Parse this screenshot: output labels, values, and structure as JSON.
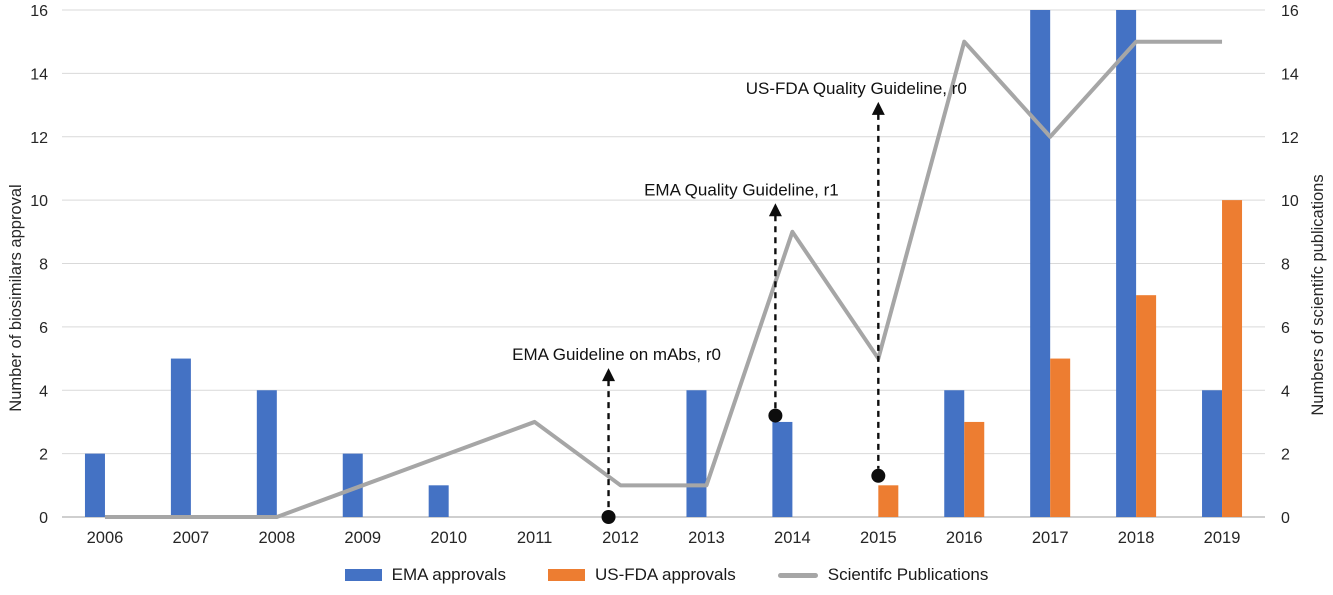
{
  "chart_data": {
    "type": "bar",
    "subtype": "bar+line combo",
    "categories": [
      "2006",
      "2007",
      "2008",
      "2009",
      "2010",
      "2011",
      "2012",
      "2013",
      "2014",
      "2015",
      "2016",
      "2017",
      "2018",
      "2019"
    ],
    "series": [
      {
        "name": "EMA approvals",
        "type": "bar",
        "axis": "left",
        "color": "#4472C4",
        "values": [
          2,
          5,
          4,
          2,
          1,
          0,
          0,
          4,
          3,
          0,
          4,
          16,
          16,
          4
        ]
      },
      {
        "name": "US-FDA approvals",
        "type": "bar",
        "axis": "left",
        "color": "#ED7D31",
        "values": [
          0,
          0,
          0,
          0,
          0,
          0,
          0,
          0,
          0,
          1,
          3,
          5,
          7,
          10
        ]
      },
      {
        "name": "Scientifc Publications",
        "type": "line",
        "axis": "right",
        "color": "#A6A6A6",
        "values": [
          0,
          0,
          0,
          1,
          2,
          3,
          1,
          1,
          9,
          5,
          15,
          12,
          15,
          15
        ]
      }
    ],
    "left_axis": {
      "title": "Number of biosimilars approval",
      "min": 0,
      "max": 16,
      "step": 2,
      "ticks": [
        0,
        2,
        4,
        6,
        8,
        10,
        12,
        14,
        16
      ]
    },
    "right_axis": {
      "title": "Numbers of scientifc publications",
      "min": 0,
      "max": 16,
      "step": 2,
      "ticks": [
        0,
        2,
        4,
        6,
        8,
        10,
        12,
        14,
        16
      ]
    },
    "grid": true,
    "legend_position": "bottom",
    "annotations": [
      {
        "category": "2012",
        "label": "EMA Guideline on mAbs, r0",
        "dot_value": 0,
        "tip_value": 4.7,
        "dx_line": -12,
        "dx_text": 8
      },
      {
        "category": "2014",
        "label": "EMA Quality Guideline, r1",
        "dot_value": 3.2,
        "tip_value": 9.9,
        "dx_line": -17,
        "dx_text": -34
      },
      {
        "category": "2015",
        "label": "US-FDA Quality Guideline, r0",
        "dot_value": 1.3,
        "tip_value": 13.1,
        "dx_line": 0,
        "dx_text": -22
      }
    ],
    "legend": [
      {
        "label": "EMA approvals",
        "swatch": "rect",
        "color": "#4472C4"
      },
      {
        "label": "US-FDA approvals",
        "swatch": "rect",
        "color": "#ED7D31"
      },
      {
        "label": "Scientifc Publications",
        "swatch": "line",
        "color": "#A6A6A6"
      }
    ],
    "colors": {
      "grid": "#D9D9D9",
      "axis_line": "#BFBFBF",
      "tick_text": "#262626",
      "annotation_text": "#111111",
      "annotation_line": "#0d0d0d",
      "background": "#FFFFFF"
    }
  }
}
